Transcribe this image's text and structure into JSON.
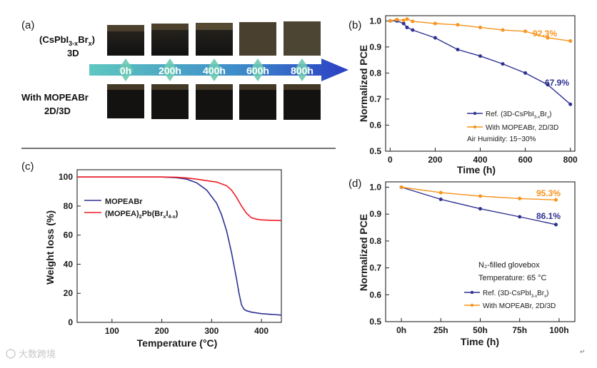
{
  "watermark": "大数跨境",
  "corner_mark": "↵",
  "chart_data": [
    {
      "panel": "(a)",
      "type": "photo-timeline",
      "row_labels": [
        {
          "line1_pre": "(CsPbI",
          "line1_sub1": "3-x",
          "line1_mid": "Br",
          "line1_sub2": "x",
          "line1_post": ")",
          "line2": "3D"
        },
        {
          "line1": "With MOPEABr",
          "line2": "2D/3D"
        }
      ],
      "timepoints": [
        "0h",
        "200h",
        "400h",
        "600h",
        "800h"
      ]
    },
    {
      "panel": "(b)",
      "type": "line",
      "xlabel": "Time (h)",
      "ylabel": "Normalized PCE",
      "xlim": [
        -20,
        820
      ],
      "ylim": [
        0.5,
        1.02
      ],
      "xticks": [
        0,
        200,
        400,
        600,
        800
      ],
      "yticks": [
        0.5,
        0.6,
        0.7,
        0.8,
        0.9,
        1.0
      ],
      "ytick_labels": [
        "0.5",
        "0.6",
        "0.7",
        "0.8",
        "0.9",
        "1.0"
      ],
      "series": [
        {
          "name_pre": "Ref. (3D-CsPbI",
          "name_sub1": "3-x",
          "name_mid": "Br",
          "name_sub2": "x",
          "name_post": ")",
          "color": "#2e3192",
          "x": [
            0,
            30,
            60,
            75,
            100,
            200,
            300,
            400,
            500,
            600,
            700,
            800
          ],
          "y": [
            1.0,
            1.0,
            0.99,
            0.975,
            0.965,
            0.935,
            0.89,
            0.865,
            0.835,
            0.8,
            0.755,
            0.68
          ],
          "end_label": "67.9%"
        },
        {
          "name": "With MOPEABr, 2D/3D",
          "color": "#f7941d",
          "x": [
            0,
            30,
            60,
            75,
            100,
            200,
            300,
            400,
            500,
            600,
            700,
            800
          ],
          "y": [
            1.0,
            1.005,
            1.002,
            1.007,
            0.998,
            0.99,
            0.985,
            0.975,
            0.965,
            0.96,
            0.935,
            0.923
          ],
          "end_label": "92.3%"
        }
      ],
      "annotation": "Air Humidity: 15~30%"
    },
    {
      "panel": "(c)",
      "type": "line",
      "xlabel": "Temperature (°C)",
      "ylabel": "Weight loss (%)",
      "xlim": [
        30,
        440
      ],
      "ylim": [
        0,
        105
      ],
      "xticks": [
        100,
        200,
        300,
        400
      ],
      "yticks": [
        0,
        20,
        40,
        60,
        80,
        100
      ],
      "series": [
        {
          "name": "MOPEABr",
          "color": "#2e3192",
          "x": [
            30,
            100,
            200,
            230,
            250,
            270,
            290,
            310,
            320,
            330,
            340,
            350,
            355,
            360,
            365,
            370,
            380,
            400,
            420,
            440
          ],
          "y": [
            100,
            100,
            100,
            99.5,
            98.5,
            96,
            91,
            82,
            74,
            63,
            48,
            30,
            20,
            12,
            9,
            8,
            7,
            6,
            5.5,
            5
          ]
        },
        {
          "name_pre": "(MOPEA)",
          "name_sub1": "2",
          "name_mid": "Pb(Br",
          "name_sub2": "x",
          "name_mid2": "I",
          "name_sub3": "4-x",
          "name_post": ")",
          "color": "#ed1c24",
          "x": [
            30,
            100,
            200,
            230,
            250,
            270,
            290,
            310,
            330,
            340,
            350,
            360,
            370,
            380,
            390,
            400,
            420,
            440
          ],
          "y": [
            100,
            100,
            100,
            99.8,
            99.3,
            98.5,
            97.5,
            96.5,
            94,
            91,
            86,
            80,
            75,
            72,
            71,
            70.5,
            70.2,
            70
          ]
        }
      ]
    },
    {
      "panel": "(d)",
      "type": "line",
      "xlabel": "Time (h)",
      "ylabel": "Normalized PCE",
      "xlim": [
        -10,
        110
      ],
      "ylim": [
        0.5,
        1.02
      ],
      "categories": [
        "0h",
        "25h",
        "50h",
        "75h",
        "100h"
      ],
      "xticks": [
        0,
        25,
        50,
        75,
        100
      ],
      "yticks": [
        0.5,
        0.6,
        0.7,
        0.8,
        0.9,
        1.0
      ],
      "ytick_labels": [
        "0.5",
        "0.6",
        "0.7",
        "0.8",
        "0.9",
        "1.0"
      ],
      "series": [
        {
          "name_pre": "Ref. (3D-CsPbI",
          "name_sub1": "3-x",
          "name_mid": "Br",
          "name_sub2": "x",
          "name_post": ")",
          "color": "#2e3192",
          "x": [
            0,
            25,
            50,
            75,
            98
          ],
          "y": [
            1.0,
            0.955,
            0.92,
            0.89,
            0.861
          ],
          "end_label": "86.1%"
        },
        {
          "name": "With MOPEABr, 2D/3D",
          "color": "#f7941d",
          "x": [
            0,
            25,
            50,
            75,
            98
          ],
          "y": [
            1.0,
            0.98,
            0.967,
            0.958,
            0.953
          ],
          "end_label": "95.3%"
        }
      ],
      "annotation_lines": [
        "N₂-filled glovebox",
        "Temperature: 65 °C"
      ]
    }
  ]
}
